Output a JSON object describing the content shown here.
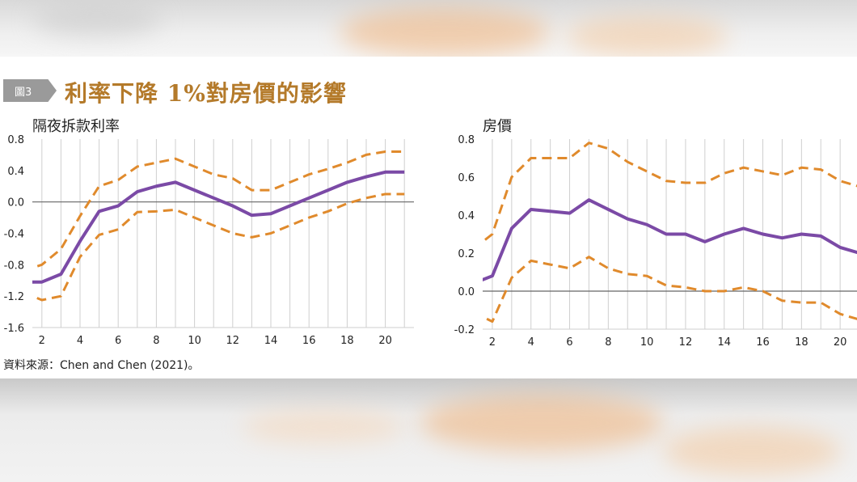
{
  "figure": {
    "tag": "圖3",
    "title": "利率下降 1%對房價的影響",
    "source": "資料來源：Chen and Chen (2021)。"
  },
  "colors": {
    "estimate": "#7b4aa6",
    "band": "#e08a2c",
    "grid": "#cfcfcf",
    "zero_line": "#666666",
    "title": "#b47a2a",
    "tag_bg": "#9a9a9a"
  },
  "chart_data": [
    {
      "type": "line",
      "title": "隔夜拆款利率",
      "xlabel": "",
      "ylabel": "",
      "xlim": [
        1.5,
        21.5
      ],
      "ylim": [
        -1.6,
        0.8
      ],
      "x_ticks": [
        2,
        4,
        6,
        8,
        10,
        12,
        14,
        16,
        18,
        20
      ],
      "y_ticks": [
        -1.6,
        -1.2,
        -0.8,
        -0.4,
        0.0,
        0.4,
        0.8
      ],
      "grid": "vertical",
      "x": [
        1,
        2,
        3,
        4,
        5,
        6,
        7,
        8,
        9,
        10,
        11,
        12,
        13,
        14,
        15,
        16,
        17,
        18,
        19,
        20,
        21
      ],
      "series": [
        {
          "role": "upper",
          "style": "dashed",
          "values": [
            -0.88,
            -0.8,
            -0.6,
            -0.18,
            0.2,
            0.28,
            0.45,
            0.5,
            0.55,
            0.45,
            0.35,
            0.3,
            0.15,
            0.15,
            0.25,
            0.35,
            0.42,
            0.5,
            0.6,
            0.64,
            0.64
          ]
        },
        {
          "role": "estimate",
          "style": "solid",
          "values": [
            -1.02,
            -1.02,
            -0.92,
            -0.5,
            -0.12,
            -0.05,
            0.13,
            0.2,
            0.25,
            0.15,
            0.05,
            -0.05,
            -0.17,
            -0.15,
            -0.05,
            0.05,
            0.15,
            0.25,
            0.32,
            0.38,
            0.38
          ]
        },
        {
          "role": "lower",
          "style": "dashed",
          "values": [
            -1.15,
            -1.25,
            -1.2,
            -0.7,
            -0.42,
            -0.35,
            -0.13,
            -0.12,
            -0.1,
            -0.2,
            -0.3,
            -0.4,
            -0.45,
            -0.4,
            -0.3,
            -0.2,
            -0.12,
            -0.02,
            0.05,
            0.1,
            0.1
          ]
        }
      ]
    },
    {
      "type": "line",
      "title": "房價",
      "xlabel": "",
      "ylabel": "",
      "xlim": [
        1.5,
        21.5
      ],
      "ylim": [
        -0.2,
        0.8
      ],
      "x_ticks": [
        2,
        4,
        6,
        8,
        10,
        12,
        14,
        16,
        18,
        20
      ],
      "y_ticks": [
        -0.2,
        0.0,
        0.2,
        0.4,
        0.6,
        0.8
      ],
      "grid": "vertical",
      "x": [
        1,
        2,
        3,
        4,
        5,
        6,
        7,
        8,
        9,
        10,
        11,
        12,
        13,
        14,
        15,
        16,
        17,
        18,
        19,
        20,
        21
      ],
      "series": [
        {
          "role": "upper",
          "style": "dashed",
          "values": [
            0.22,
            0.3,
            0.6,
            0.7,
            0.7,
            0.7,
            0.78,
            0.75,
            0.68,
            0.63,
            0.58,
            0.57,
            0.57,
            0.62,
            0.65,
            0.63,
            0.61,
            0.65,
            0.64,
            0.58,
            0.55
          ]
        },
        {
          "role": "estimate",
          "style": "solid",
          "values": [
            0.04,
            0.08,
            0.33,
            0.43,
            0.42,
            0.41,
            0.48,
            0.43,
            0.38,
            0.35,
            0.3,
            0.3,
            0.26,
            0.3,
            0.33,
            0.3,
            0.28,
            0.3,
            0.29,
            0.23,
            0.2
          ]
        },
        {
          "role": "lower",
          "style": "dashed",
          "values": [
            -0.11,
            -0.16,
            0.07,
            0.16,
            0.14,
            0.12,
            0.18,
            0.12,
            0.09,
            0.08,
            0.03,
            0.02,
            0.0,
            0.0,
            0.02,
            0.0,
            -0.05,
            -0.06,
            -0.06,
            -0.12,
            -0.15
          ]
        }
      ]
    }
  ]
}
